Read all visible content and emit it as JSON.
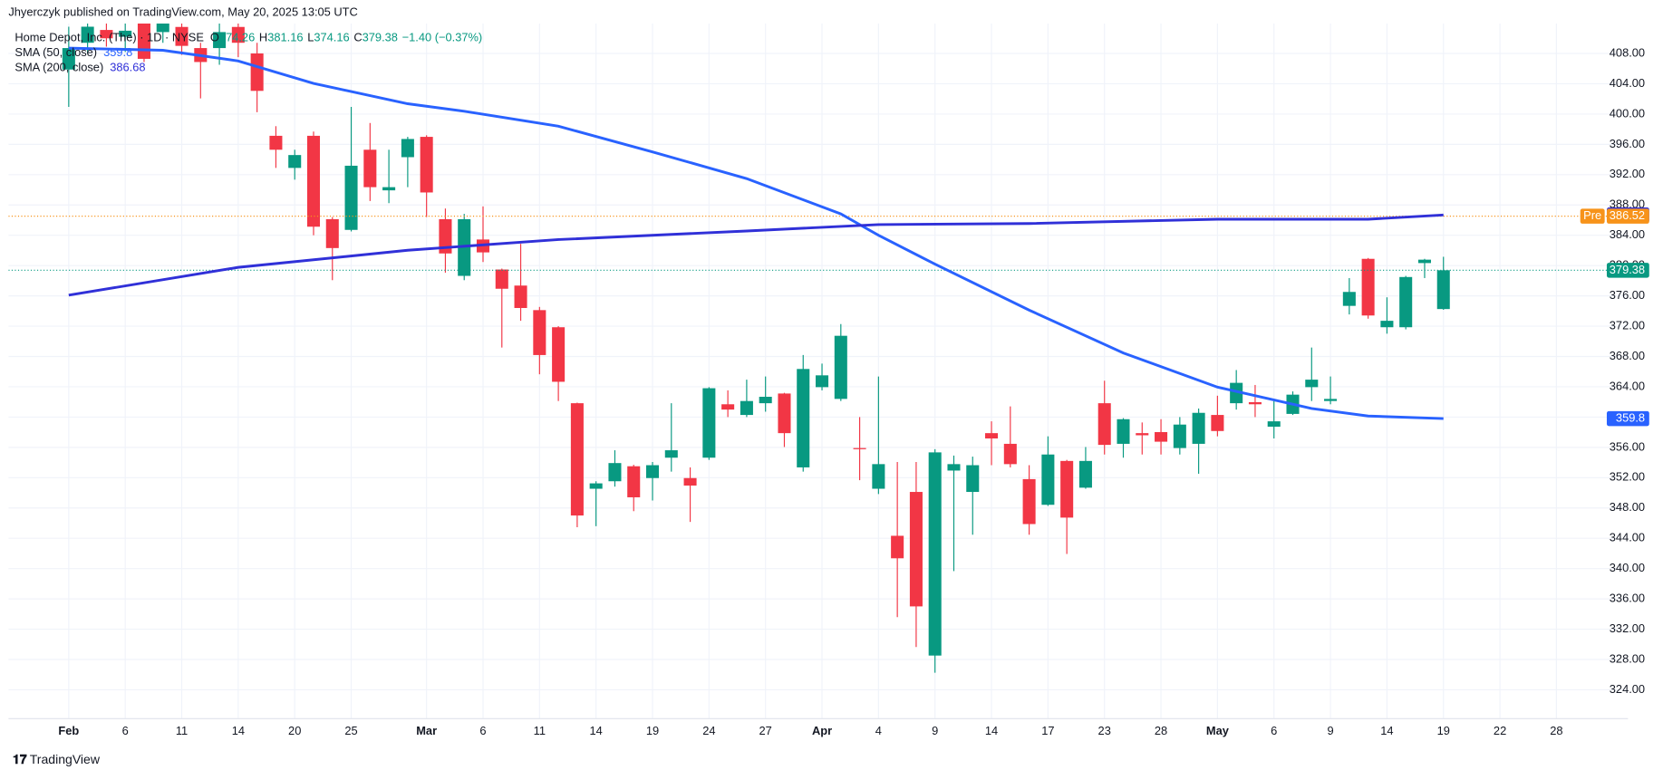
{
  "chart_data": {
    "type": "candlestick",
    "header": "Jhyerczyk published on TradingView.com, May 20, 2025 13:05 UTC",
    "footer": "TradingView",
    "legend": {
      "name": "Home Depot, Inc. (The) · 1D · NYSE",
      "fields": [
        "O",
        "H",
        "L",
        "C"
      ],
      "change": "−1.40 (−0.37%)"
    },
    "categories": [
      "Feb 3",
      "Feb 4",
      "Feb 5",
      "Feb 6",
      "Feb 7",
      "Feb 10",
      "Feb 11",
      "Feb 12",
      "Feb 13",
      "Feb 14",
      "Feb 18",
      "Feb 19",
      "Feb 20",
      "Feb 21",
      "Feb 24",
      "Feb 25",
      "Feb 26",
      "Feb 27",
      "Feb 28",
      "Mar 3",
      "Mar 4",
      "Mar 5",
      "Mar 6",
      "Mar 7",
      "Mar 10",
      "Mar 11",
      "Mar 12",
      "Mar 13",
      "Mar 14",
      "Mar 17",
      "Mar 18",
      "Mar 19",
      "Mar 20",
      "Mar 21",
      "Mar 24",
      "Mar 25",
      "Mar 26",
      "Mar 27",
      "Mar 28",
      "Mar 31",
      "Apr 1",
      "Apr 2",
      "Apr 3",
      "Apr 4",
      "Apr 7",
      "Apr 8",
      "Apr 9",
      "Apr 10",
      "Apr 11",
      "Apr 14",
      "Apr 15",
      "Apr 16",
      "Apr 17",
      "Apr 21",
      "Apr 22",
      "Apr 23",
      "Apr 24",
      "Apr 25",
      "Apr 28",
      "Apr 29",
      "Apr 30",
      "May 1",
      "May 2",
      "May 5",
      "May 6",
      "May 7",
      "May 8",
      "May 9",
      "May 12",
      "May 13",
      "May 14",
      "May 15",
      "May 16",
      "May 19"
    ],
    "candles": {
      "up_color": "#089981",
      "down_color": "#f23645",
      "open": [
        405.88,
        409.41,
        411.1,
        410.2,
        412.24,
        410.82,
        411.5,
        408.71,
        408.71,
        411.5,
        408.0,
        397.13,
        392.89,
        397.13,
        386.12,
        384.71,
        395.29,
        389.93,
        394.31,
        396.99,
        386.12,
        378.64,
        383.44,
        379.48,
        377.36,
        374.12,
        371.86,
        361.83,
        350.54,
        351.53,
        353.51,
        351.95,
        354.64,
        351.95,
        354.64,
        361.69,
        360.28,
        361.83,
        363.11,
        353.36,
        363.95,
        362.4,
        355.91,
        350.54,
        344.33,
        350.12,
        328.52,
        352.94,
        350.12,
        357.88,
        356.47,
        351.81,
        348.42,
        354.21,
        350.68,
        361.83,
        356.47,
        357.88,
        358.02,
        355.91,
        356.47,
        360.28,
        361.83,
        361.97,
        358.73,
        360.42,
        363.95,
        362.12,
        374.68,
        380.89,
        371.86,
        371.86,
        380.33,
        374.26
      ],
      "high": [
        411.53,
        412.24,
        413.2,
        412.5,
        413.5,
        413.6,
        412.6,
        409.41,
        412.0,
        412.6,
        409.41,
        398.4,
        395.29,
        397.69,
        386.4,
        400.94,
        398.82,
        395.29,
        396.99,
        397.2,
        387.53,
        386.82,
        387.81,
        379.6,
        382.87,
        374.54,
        372.0,
        361.9,
        351.53,
        355.62,
        353.7,
        354.07,
        361.83,
        353.36,
        363.95,
        363.53,
        364.94,
        365.36,
        363.2,
        368.19,
        367.06,
        372.28,
        360.0,
        365.36,
        354.07,
        354.07,
        355.76,
        354.92,
        354.78,
        359.44,
        361.41,
        353.65,
        357.46,
        354.35,
        356.05,
        364.8,
        359.86,
        359.29,
        359.72,
        360.0,
        361.13,
        362.82,
        366.21,
        364.24,
        362.12,
        363.39,
        369.18,
        365.36,
        378.35,
        381.0,
        375.81,
        378.64,
        380.89,
        381.16
      ],
      "low": [
        400.94,
        408.0,
        408.9,
        408.2,
        406.87,
        409.4,
        407.8,
        402.07,
        406.5,
        407.5,
        400.24,
        392.89,
        391.34,
        384.0,
        378.07,
        384.5,
        388.52,
        388.24,
        390.35,
        386.4,
        379.06,
        378.07,
        380.47,
        369.18,
        372.71,
        365.65,
        362.12,
        345.46,
        345.6,
        350.82,
        347.58,
        348.99,
        352.8,
        346.16,
        354.35,
        360.0,
        360.0,
        360.71,
        356.05,
        352.8,
        363.53,
        362.12,
        351.67,
        349.84,
        333.6,
        329.65,
        326.26,
        339.67,
        344.47,
        353.65,
        353.36,
        344.47,
        348.28,
        341.93,
        350.54,
        355.06,
        354.64,
        355.06,
        355.06,
        355.06,
        352.52,
        357.46,
        360.99,
        360.0,
        357.18,
        360.28,
        362.12,
        361.69,
        373.55,
        372.99,
        371.01,
        371.58,
        378.35,
        374.16
      ],
      "close": [
        408.71,
        411.53,
        410.0,
        411.0,
        407.29,
        412.24,
        409.0,
        406.87,
        410.82,
        409.41,
        403.06,
        395.29,
        394.59,
        385.13,
        382.31,
        393.18,
        390.35,
        390.35,
        396.71,
        389.65,
        381.6,
        386.12,
        381.74,
        376.94,
        374.4,
        368.19,
        364.66,
        347.01,
        351.25,
        353.93,
        349.41,
        353.65,
        355.62,
        350.96,
        363.81,
        360.99,
        362.12,
        362.68,
        357.88,
        366.35,
        365.51,
        370.73,
        355.76,
        353.79,
        341.36,
        335.01,
        355.34,
        353.79,
        353.65,
        357.18,
        353.79,
        345.88,
        355.06,
        346.73,
        354.21,
        356.33,
        359.72,
        357.6,
        356.75,
        359.01,
        360.56,
        358.16,
        364.52,
        361.69,
        359.44,
        362.96,
        364.94,
        362.4,
        376.52,
        373.41,
        372.71,
        378.49,
        380.78,
        379.38
      ]
    },
    "series": [
      {
        "name": "SMA (50, close)",
        "color": "#2962ff",
        "x": [
          "Feb 3",
          "Feb 10",
          "Feb 14",
          "Feb 21",
          "Feb 28",
          "Mar 5",
          "Mar 12",
          "Mar 19",
          "Mar 26",
          "Apr 2",
          "Apr 4",
          "Apr 9",
          "Apr 16",
          "Apr 24",
          "May 1",
          "May 8",
          "May 13",
          "May 19"
        ],
        "values": [
          408.71,
          408.42,
          407.01,
          404.05,
          401.36,
          400.38,
          398.4,
          395.01,
          391.48,
          386.82,
          384.0,
          380.19,
          374.12,
          368.47,
          363.95,
          361.13,
          360.14,
          359.8
        ]
      },
      {
        "name": "SMA (200, close)",
        "color": "#3030d8",
        "x": [
          "Feb 3",
          "Feb 14",
          "Feb 28",
          "Mar 12",
          "Mar 26",
          "Apr 4",
          "Apr 16",
          "May 1",
          "May 13",
          "May 19"
        ],
        "values": [
          376.09,
          379.76,
          382.02,
          383.44,
          384.56,
          385.41,
          385.55,
          386.12,
          386.12,
          386.68
        ]
      }
    ],
    "pre_market": {
      "label": "Pre",
      "value": 386.52,
      "color": "#f7931a"
    },
    "xlim": [
      -3.2,
      82.8
    ],
    "xticks": [
      {
        "value": 0,
        "label": "Feb"
      },
      {
        "value": 3,
        "label": "6"
      },
      {
        "value": 6,
        "label": "11"
      },
      {
        "value": 9,
        "label": "14"
      },
      {
        "value": 12,
        "label": "20"
      },
      {
        "value": 15,
        "label": "25"
      },
      {
        "value": 19,
        "label": "Mar"
      },
      {
        "value": 22,
        "label": "6"
      },
      {
        "value": 25,
        "label": "11"
      },
      {
        "value": 28,
        "label": "14"
      },
      {
        "value": 31,
        "label": "19"
      },
      {
        "value": 34,
        "label": "24"
      },
      {
        "value": 37,
        "label": "27"
      },
      {
        "value": 40,
        "label": "Apr"
      },
      {
        "value": 43,
        "label": "4"
      },
      {
        "value": 46,
        "label": "9"
      },
      {
        "value": 49,
        "label": "14"
      },
      {
        "value": 52,
        "label": "17"
      },
      {
        "value": 55,
        "label": "23"
      },
      {
        "value": 58,
        "label": "28"
      },
      {
        "value": 61,
        "label": "May"
      },
      {
        "value": 64,
        "label": "6"
      },
      {
        "value": 67,
        "label": "9"
      },
      {
        "value": 70,
        "label": "14"
      },
      {
        "value": 73,
        "label": "19"
      },
      {
        "value": 76,
        "label": "22"
      },
      {
        "value": 79,
        "label": "28"
      }
    ],
    "ylim": [
      320.19,
      411.95
    ],
    "yticks": [
      {
        "value": 324,
        "label": "324.00"
      },
      {
        "value": 328,
        "label": "328.00"
      },
      {
        "value": 332,
        "label": "332.00"
      },
      {
        "value": 336,
        "label": "336.00"
      },
      {
        "value": 340,
        "label": "340.00"
      },
      {
        "value": 344,
        "label": "344.00"
      },
      {
        "value": 348,
        "label": "348.00"
      },
      {
        "value": 352,
        "label": "352.00"
      },
      {
        "value": 356,
        "label": "356.00"
      },
      {
        "value": 360,
        "label": "360.00"
      },
      {
        "value": 364,
        "label": "364.00"
      },
      {
        "value": 368,
        "label": "368.00"
      },
      {
        "value": 372,
        "label": "372.00"
      },
      {
        "value": 376,
        "label": "376.00"
      },
      {
        "value": 380,
        "label": "380.00"
      },
      {
        "value": 384,
        "label": "384.00"
      },
      {
        "value": 388,
        "label": "388.00"
      },
      {
        "value": 392,
        "label": "392.00"
      },
      {
        "value": 396,
        "label": "396.00"
      },
      {
        "value": 400,
        "label": "400.00"
      },
      {
        "value": 404,
        "label": "404.00"
      },
      {
        "value": 408,
        "label": "408.00"
      }
    ],
    "grid": true
  }
}
